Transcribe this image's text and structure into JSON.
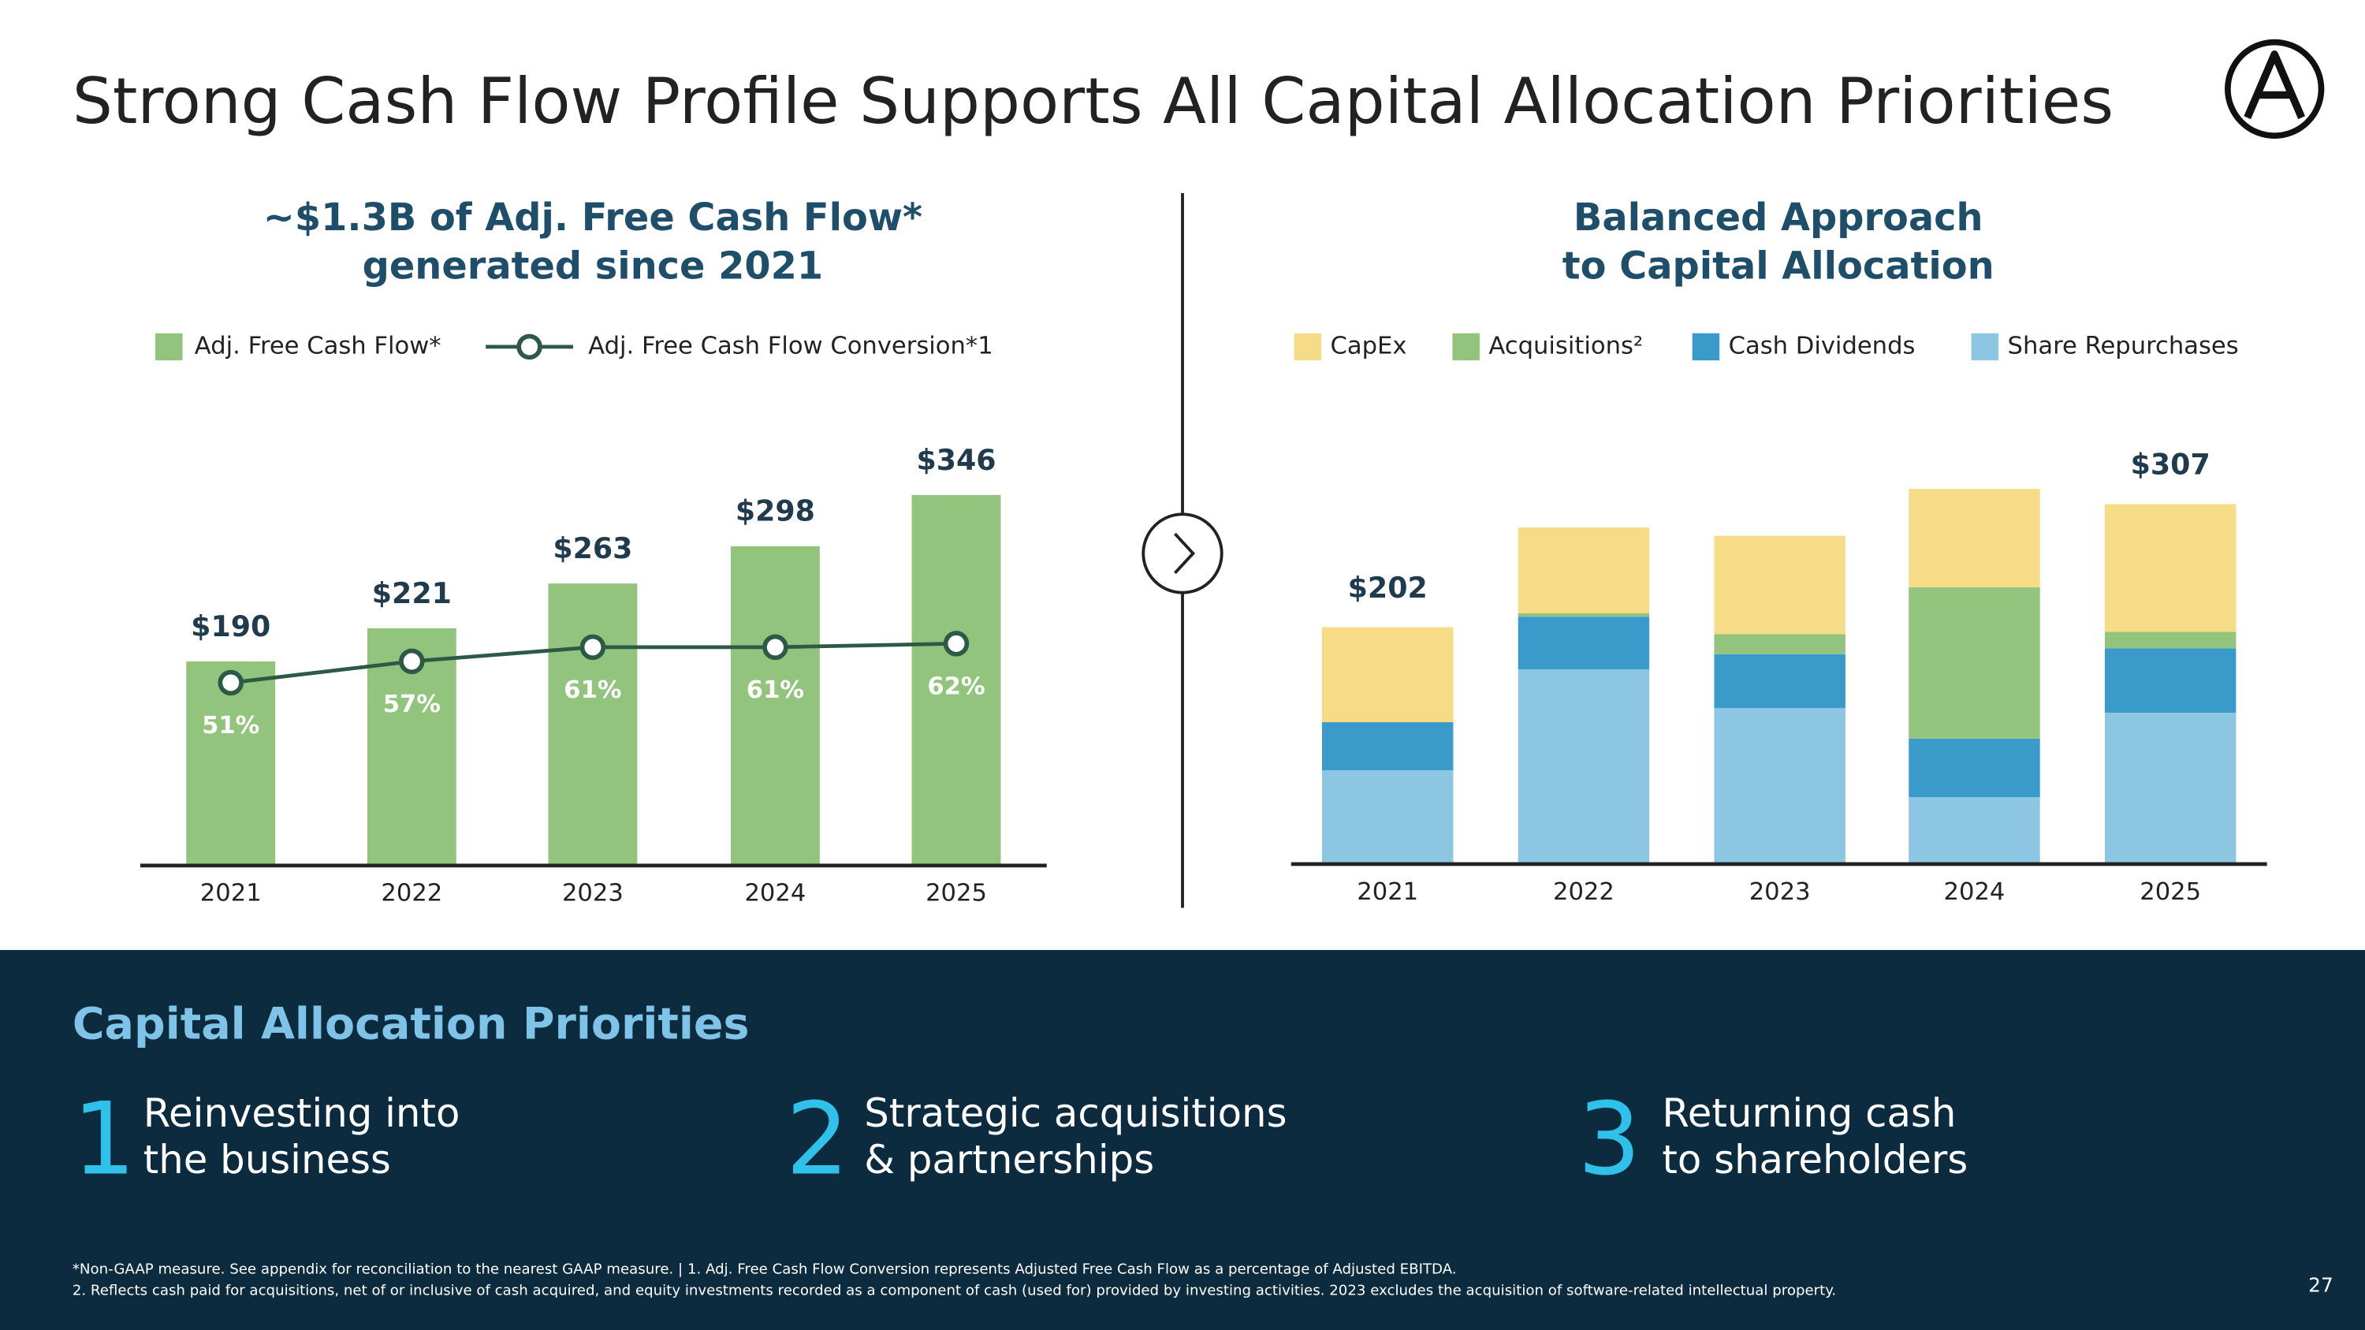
{
  "header": {
    "title": "Strong Cash Flow Profile Supports All Capital Allocation Priorities"
  },
  "chart_data": [
    {
      "type": "bar-line",
      "title": [
        "~$1.3B of Adj. Free Cash Flow*",
        "generated since 2021"
      ],
      "categories": [
        "2021",
        "2022",
        "2023",
        "2024",
        "2025"
      ],
      "series": [
        {
          "name": "Adj. Free Cash Flow*",
          "type": "bar",
          "color": "#93c47d",
          "values": [
            190,
            221,
            263,
            298,
            346
          ],
          "value_labels": [
            "$190",
            "$221",
            "$263",
            "$298",
            "$346"
          ]
        },
        {
          "name": "Adj. Free Cash Flow Conversion*1",
          "type": "line",
          "axis": "y2",
          "color": "#2d5a46",
          "values": [
            51,
            57,
            61,
            61,
            62
          ],
          "value_labels": [
            "51%",
            "57%",
            "61%",
            "61%",
            "62%"
          ]
        }
      ],
      "ylim": [
        0,
        410
      ],
      "y2lim": [
        0,
        123
      ]
    },
    {
      "type": "stacked-bar",
      "title": [
        "Balanced Approach",
        "to Capital Allocation"
      ],
      "categories": [
        "2021",
        "2022",
        "2023",
        "2024",
        "2025"
      ],
      "series": [
        {
          "name": "CapEx",
          "color": "#f6dc87",
          "values": [
            81,
            73,
            84,
            84,
            109
          ]
        },
        {
          "name": "Acquisitions²",
          "color": "#93c47d",
          "values": [
            0,
            3,
            17,
            129,
            14
          ]
        },
        {
          "name": "Cash Dividends",
          "color": "#3a9bca",
          "values": [
            41,
            45,
            46,
            50,
            55
          ]
        },
        {
          "name": "Share Repurchases",
          "color": "#8dc6e2",
          "values": [
            80,
            166,
            133,
            57,
            129
          ]
        }
      ],
      "total_labels": [
        {
          "category": "2021",
          "value": 202,
          "label": "$202"
        },
        {
          "category": "2025",
          "value": 307,
          "label": "$307"
        }
      ],
      "ylim": [
        0,
        373
      ]
    }
  ],
  "priorities": {
    "title": "Capital Allocation Priorities",
    "items": [
      {
        "number": "1",
        "lines": [
          "Reinvesting into",
          "the business"
        ]
      },
      {
        "number": "2",
        "lines": [
          "Strategic acquisitions",
          "& partnerships"
        ]
      },
      {
        "number": "3",
        "lines": [
          "Returning cash",
          "to shareholders"
        ]
      }
    ]
  },
  "footnotes": [
    "*Non-GAAP measure. See appendix for reconciliation to the nearest GAAP measure. | 1. Adj. Free Cash Flow Conversion represents Adjusted Free Cash Flow as a percentage of Adjusted EBITDA.",
    "2. Reflects cash paid for acquisitions, net of or inclusive of cash acquired, and equity investments recorded as a component of cash (used for) provided by investing activities. 2023 excludes the acquisition of software-related intellectual property."
  ],
  "page_number": "27"
}
